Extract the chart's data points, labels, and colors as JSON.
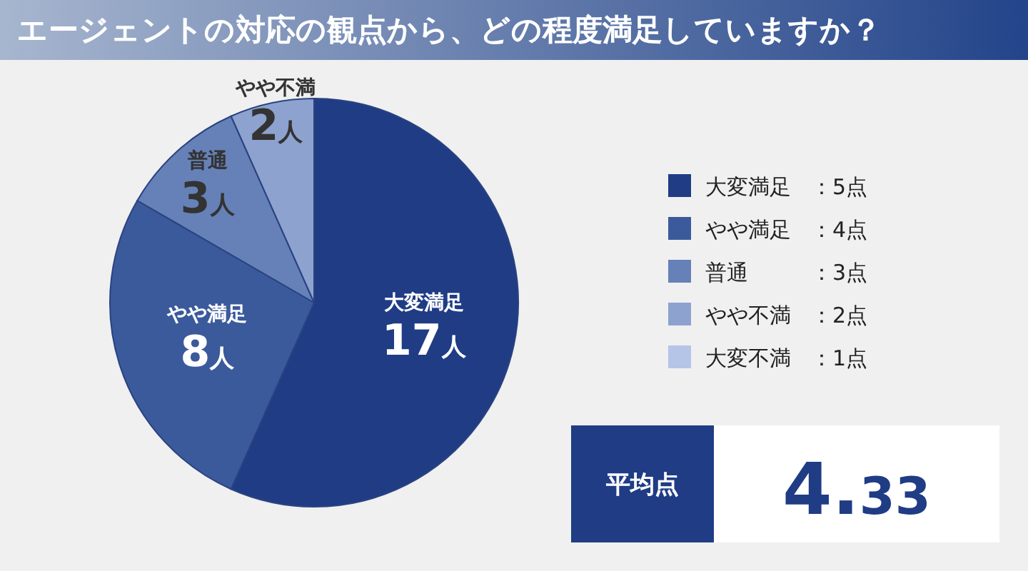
{
  "chart_data": {
    "type": "pie",
    "title": "エージェントの対応の観点から、どの程度満足していますか？",
    "categories": [
      "大変満足",
      "やや満足",
      "普通",
      "やや不満",
      "大変不満"
    ],
    "values": [
      17,
      8,
      3,
      2,
      0
    ],
    "value_labels": [
      "17人",
      "8人",
      "3人",
      "2人",
      null
    ],
    "colors": [
      "#1f3c85",
      "#3b5a9c",
      "#6681b8",
      "#8da2cf",
      "#b5c5e8"
    ],
    "legend": "right",
    "annotations": [
      "：5点",
      "：4点",
      "：3点",
      "：2点",
      "：1点",
      "平均点",
      "4.33"
    ]
  }
}
